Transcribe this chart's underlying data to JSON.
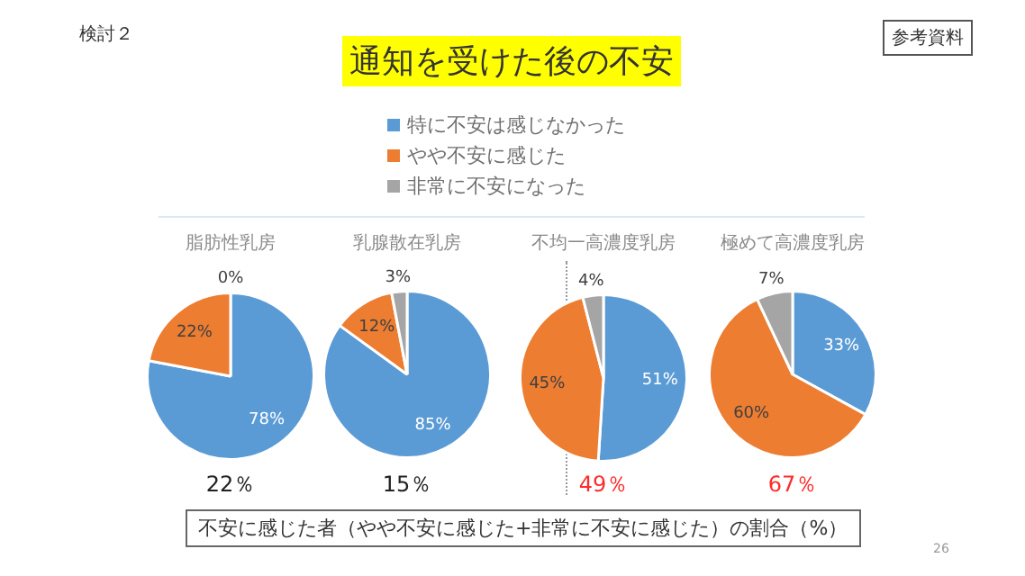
{
  "chart_data": [
    {
      "type": "other",
      "title": "通知を受けた後の不安",
      "annotations": [
        "検討２",
        "参考資料",
        "不安に感じた者（やや不安に感じた+非常に不安に感じた）の割合（%）",
        "26"
      ]
    },
    {
      "type": "pie",
      "title": "脂肪性乳房",
      "categories": [
        "特に不安は感じなかった",
        "やや不安に感じた",
        "非常に不安になった"
      ],
      "values": [
        78,
        22,
        0
      ],
      "value_labels": [
        "78%",
        "22%",
        "0%"
      ],
      "colors": [
        "#5b9bd5",
        "#ed7d31",
        "#a5a5a5"
      ],
      "legend": "top",
      "annotations": [
        "22％"
      ]
    },
    {
      "type": "pie",
      "title": "乳腺散在乳房",
      "categories": [
        null,
        null,
        null
      ],
      "values": [
        85,
        12,
        3
      ],
      "value_labels": [
        "85%",
        "12%",
        "3%"
      ],
      "colors": [
        "#5b9bd5",
        "#ed7d31",
        "#a5a5a5"
      ],
      "annotations": [
        "15％"
      ]
    },
    {
      "type": "pie",
      "title": "不均一高濃度乳房",
      "categories": [
        null,
        null,
        null
      ],
      "values": [
        51,
        45,
        4
      ],
      "value_labels": [
        "51%",
        "45%",
        "4%"
      ],
      "colors": [
        "#5b9bd5",
        "#ed7d31",
        "#a5a5a5"
      ],
      "annotations": [
        "49％"
      ]
    },
    {
      "type": "pie",
      "title": "極めて高濃度乳房",
      "categories": [
        null,
        null,
        null
      ],
      "values": [
        33,
        60,
        7
      ],
      "value_labels": [
        "33%",
        "60%",
        "7%"
      ],
      "colors": [
        "#5b9bd5",
        "#ed7d31",
        "#a5a5a5"
      ],
      "annotations": [
        "67％"
      ]
    }
  ]
}
